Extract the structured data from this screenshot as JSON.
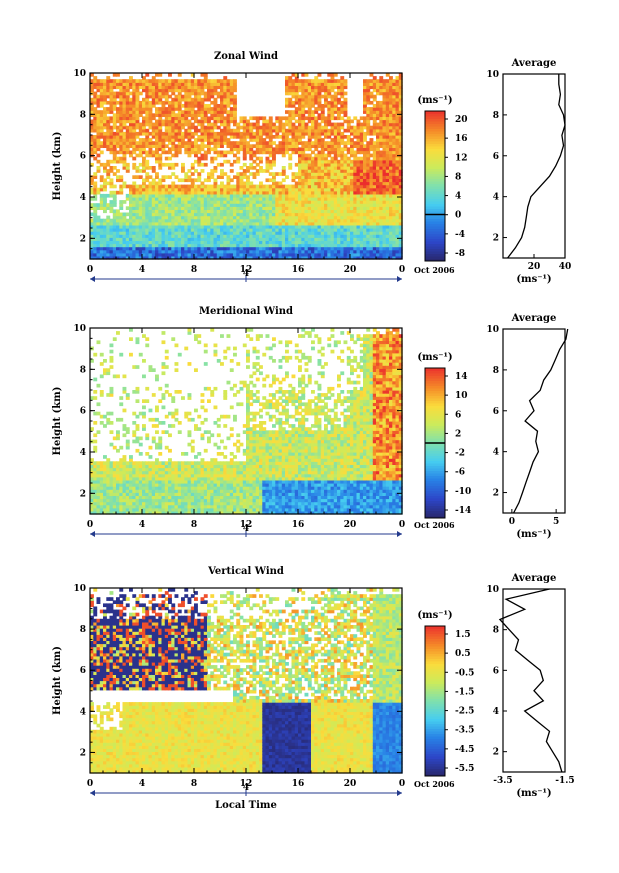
{
  "chart_data": [
    {
      "type": "heatmap",
      "title": "Zonal Wind",
      "ylabel": "Height (km)",
      "unit": "(ms⁻¹)",
      "date_label": "Oct 2006",
      "day_label": "4",
      "ylim": [
        1,
        10
      ],
      "xlim": [
        0,
        24
      ],
      "x_ticks": [
        "0",
        "4",
        "8",
        "12",
        "16",
        "20",
        "0"
      ],
      "y_ticks": [
        "2",
        "4",
        "6",
        "8",
        "10"
      ],
      "colorbar_ticks": [
        "20",
        "16",
        "12",
        "8",
        "4",
        "0",
        "-4",
        "-8"
      ],
      "colorbar_range": [
        -10,
        22
      ],
      "average_title": "Average",
      "average_xlim": [
        0,
        40
      ],
      "average_x_ticks": [
        "20",
        "40"
      ],
      "average_profile": [
        [
          3,
          1.0
        ],
        [
          8,
          1.5
        ],
        [
          12,
          2.0
        ],
        [
          14,
          2.5
        ],
        [
          15,
          3.0
        ],
        [
          16,
          3.5
        ],
        [
          18,
          4.0
        ],
        [
          24,
          4.5
        ],
        [
          30,
          5.0
        ],
        [
          34,
          5.5
        ],
        [
          37,
          6.0
        ],
        [
          39,
          6.5
        ],
        [
          38,
          7.0
        ],
        [
          40,
          7.5
        ],
        [
          39,
          8.0
        ],
        [
          36,
          8.5
        ],
        [
          37,
          9.0
        ],
        [
          36,
          9.5
        ],
        [
          36,
          10.0
        ]
      ]
    },
    {
      "type": "heatmap",
      "title": "Meridional Wind",
      "ylabel": "Height (km)",
      "unit": "(ms⁻¹)",
      "date_label": "Oct 2006",
      "day_label": "4",
      "ylim": [
        1,
        10
      ],
      "xlim": [
        0,
        24
      ],
      "x_ticks": [
        "0",
        "4",
        "8",
        "12",
        "16",
        "20",
        "0"
      ],
      "y_ticks": [
        "2",
        "4",
        "6",
        "8",
        "10"
      ],
      "colorbar_ticks": [
        "14",
        "10",
        "6",
        "2",
        "-2",
        "-6",
        "-10",
        "-14"
      ],
      "colorbar_range": [
        -16,
        16
      ],
      "average_title": "Average",
      "average_xlim": [
        -1,
        6
      ],
      "average_x_ticks": [
        "0",
        "5"
      ],
      "average_profile": [
        [
          0.2,
          1.0
        ],
        [
          0.8,
          1.5
        ],
        [
          1.2,
          2.0
        ],
        [
          1.6,
          2.5
        ],
        [
          2.0,
          3.0
        ],
        [
          2.4,
          3.5
        ],
        [
          3.0,
          4.0
        ],
        [
          2.7,
          4.5
        ],
        [
          2.9,
          5.0
        ],
        [
          1.5,
          5.5
        ],
        [
          2.5,
          6.0
        ],
        [
          2.0,
          6.5
        ],
        [
          3.2,
          7.0
        ],
        [
          3.6,
          7.5
        ],
        [
          4.4,
          8.0
        ],
        [
          4.9,
          8.5
        ],
        [
          5.4,
          9.0
        ],
        [
          6.1,
          9.5
        ],
        [
          6.3,
          10.0
        ]
      ]
    },
    {
      "type": "heatmap",
      "title": "Vertical Wind",
      "ylabel": "Height (km)",
      "unit": "(ms⁻¹)",
      "date_label": "Oct 2006",
      "day_label": "4",
      "xlabel": "Local Time",
      "ylim": [
        1,
        10
      ],
      "xlim": [
        0,
        24
      ],
      "x_ticks": [
        "0",
        "4",
        "8",
        "12",
        "16",
        "20",
        "0"
      ],
      "y_ticks": [
        "2",
        "4",
        "6",
        "8",
        "10"
      ],
      "colorbar_ticks": [
        "1.5",
        "0.5",
        "-0.5",
        "-1.5",
        "-2.5",
        "-3.5",
        "-4.5",
        "-5.5"
      ],
      "colorbar_range": [
        -6,
        2
      ],
      "average_title": "Average",
      "average_xlim": [
        -3.5,
        -1.5
      ],
      "average_x_ticks": [
        "-3.5",
        "-1.5"
      ],
      "average_profile": [
        [
          -1.6,
          1.0
        ],
        [
          -1.7,
          1.5
        ],
        [
          -1.9,
          2.0
        ],
        [
          -2.1,
          2.5
        ],
        [
          -2.0,
          3.0
        ],
        [
          -2.4,
          3.5
        ],
        [
          -2.8,
          4.0
        ],
        [
          -2.2,
          4.5
        ],
        [
          -2.5,
          5.0
        ],
        [
          -2.2,
          5.5
        ],
        [
          -2.3,
          6.0
        ],
        [
          -2.7,
          6.5
        ],
        [
          -3.1,
          7.0
        ],
        [
          -3.0,
          7.5
        ],
        [
          -3.3,
          8.0
        ],
        [
          -3.6,
          8.5
        ],
        [
          -2.8,
          9.0
        ],
        [
          -3.4,
          9.5
        ],
        [
          -2.0,
          10.0
        ]
      ]
    }
  ]
}
